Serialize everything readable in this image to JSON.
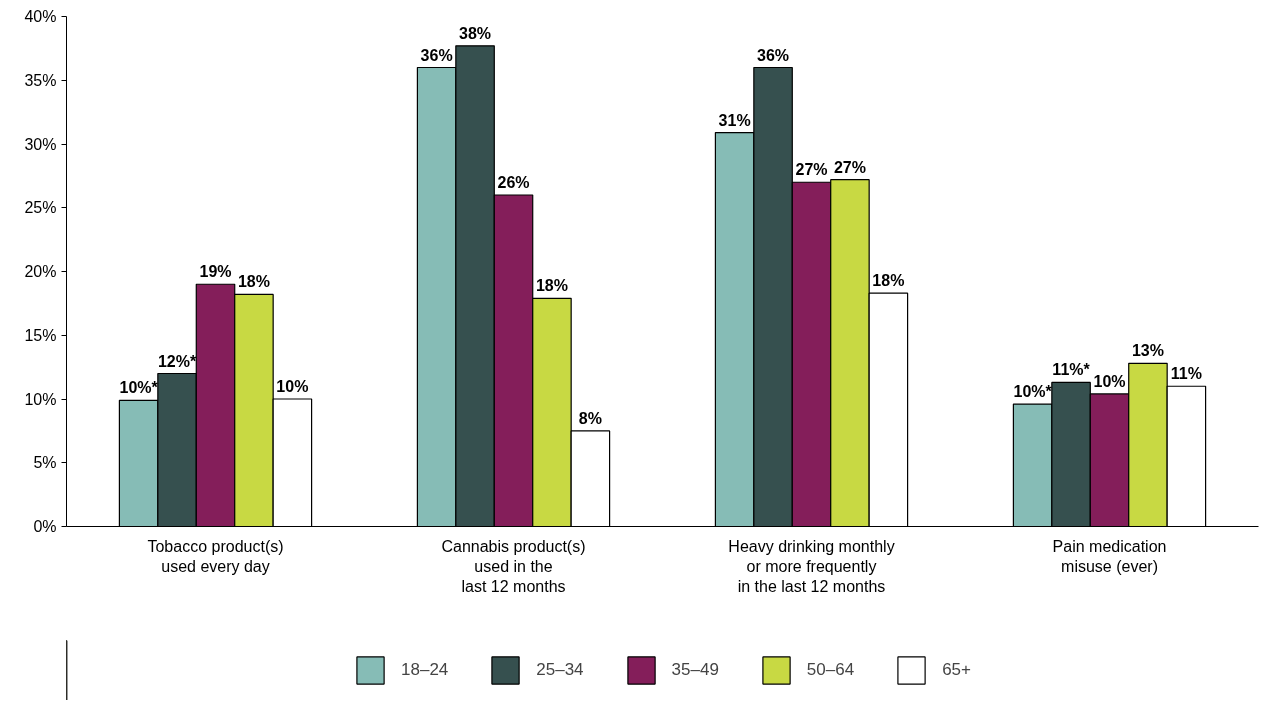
{
  "chart_data": {
    "type": "bar",
    "categories": [
      "Tobacco product(s)\nused every day",
      "Cannabis product(s)\nused in the\nlast 12 months",
      "Heavy drinking monthly\nor more frequently\nin the last 12 months",
      "Pain medication\nmisuse (ever)"
    ],
    "series": [
      {
        "name": "18–24",
        "color": "#86bcb6",
        "values": [
          9.9,
          36.0,
          30.9,
          9.6
        ],
        "value_labels": [
          "10%*",
          "36%",
          "31%",
          "10%*"
        ]
      },
      {
        "name": "25–34",
        "color": "#36504f",
        "values": [
          12.0,
          37.7,
          36.0,
          11.3
        ],
        "value_labels": [
          "12%*",
          "38%",
          "36%",
          "11%*"
        ]
      },
      {
        "name": "35–49",
        "color": "#841e5a",
        "values": [
          19.0,
          26.0,
          27.0,
          10.4
        ],
        "value_labels": [
          "19%",
          "26%",
          "27%",
          "10%"
        ]
      },
      {
        "name": "50–64",
        "color": "#c8d943",
        "values": [
          18.2,
          17.9,
          27.2,
          12.8
        ],
        "value_labels": [
          "18%",
          "18%",
          "27%",
          "13%"
        ]
      },
      {
        "name": "65+",
        "color": "#ffffff",
        "values": [
          10.0,
          7.5,
          18.3,
          11.0
        ],
        "value_labels": [
          "10%",
          "8%",
          "18%",
          "11%"
        ]
      }
    ],
    "ylim": [
      0,
      40
    ],
    "yticks": [
      {
        "value": 0,
        "label": "0%"
      },
      {
        "value": 5,
        "label": "5%"
      },
      {
        "value": 10,
        "label": "10%"
      },
      {
        "value": 15,
        "label": "15%"
      },
      {
        "value": 20,
        "label": "20%"
      },
      {
        "value": 25,
        "label": "25%"
      },
      {
        "value": 30,
        "label": "30%"
      },
      {
        "value": 35,
        "label": "35%"
      },
      {
        "value": 40,
        "label": "40%"
      }
    ],
    "grid": false,
    "legend": "bottom"
  }
}
